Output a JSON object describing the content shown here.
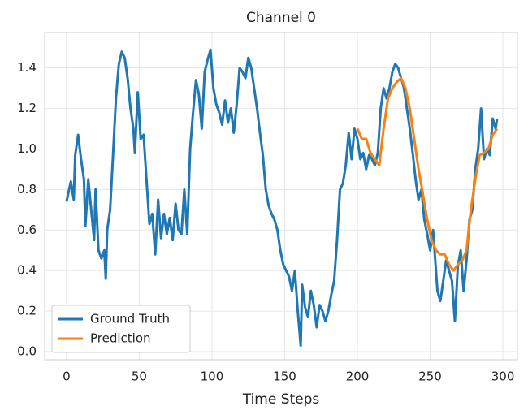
{
  "chart_data": {
    "type": "line",
    "title": "Channel 0",
    "x_label": "Time Steps",
    "xlim": [
      -15,
      310
    ],
    "xticks": [
      0,
      50,
      100,
      150,
      200,
      250,
      300
    ],
    "ylim": [
      -0.04,
      1.575
    ],
    "yticks": [
      {
        "value": 0,
        "label": "0.0"
      },
      {
        "value": 0.2,
        "label": "0.2"
      },
      {
        "value": 0.4,
        "label": "0.4"
      },
      {
        "value": 0.6,
        "label": "0.6"
      },
      {
        "value": 0.8,
        "label": "0.8"
      },
      {
        "value": 1,
        "label": "1.0"
      },
      {
        "value": 1.2,
        "label": "1.2"
      },
      {
        "value": 1.4,
        "label": "1.4"
      }
    ],
    "grid": true,
    "legend": "lower left",
    "series": [
      {
        "name": "Ground Truth",
        "color": "#1f77b4",
        "x": [
          0,
          3,
          5,
          6,
          8,
          10,
          12,
          13,
          15,
          17,
          19,
          20,
          22,
          24,
          26,
          27,
          28,
          30,
          32,
          34,
          36,
          38,
          40,
          42,
          44,
          46,
          47,
          49,
          51,
          53,
          55,
          57,
          59,
          61,
          63,
          65,
          67,
          69,
          71,
          73,
          75,
          77,
          79,
          81,
          83,
          85,
          87,
          89,
          91,
          93,
          95,
          97,
          99,
          101,
          103,
          105,
          107,
          109,
          111,
          113,
          115,
          117,
          119,
          121,
          123,
          125,
          127,
          129,
          131,
          133,
          135,
          137,
          139,
          141,
          143,
          145,
          147,
          149,
          151,
          153,
          155,
          157,
          159,
          161,
          162,
          164,
          166,
          168,
          170,
          172,
          174,
          176,
          178,
          180,
          182,
          184,
          186,
          188,
          190,
          192,
          194,
          196,
          198,
          200,
          202,
          204,
          206,
          208,
          210,
          212,
          214,
          216,
          218,
          220,
          222,
          224,
          226,
          228,
          230,
          232,
          234,
          236,
          238,
          240,
          242,
          244,
          246,
          248,
          250,
          252,
          254,
          255,
          257,
          259,
          261,
          263,
          265,
          267,
          269,
          271,
          273,
          275,
          277,
          279,
          281,
          283,
          285,
          287,
          289,
          291,
          293,
          295,
          296
        ],
        "values": [
          0.74,
          0.84,
          0.75,
          0.97,
          1.07,
          0.95,
          0.85,
          0.62,
          0.85,
          0.7,
          0.55,
          0.8,
          0.5,
          0.46,
          0.5,
          0.36,
          0.6,
          0.7,
          0.97,
          1.25,
          1.42,
          1.48,
          1.45,
          1.35,
          1.2,
          1.1,
          0.98,
          1.28,
          1.05,
          1.07,
          0.85,
          0.63,
          0.68,
          0.48,
          0.75,
          0.56,
          0.68,
          0.58,
          0.66,
          0.55,
          0.73,
          0.6,
          0.58,
          0.8,
          0.58,
          1.0,
          1.18,
          1.34,
          1.27,
          1.1,
          1.38,
          1.44,
          1.49,
          1.3,
          1.22,
          1.18,
          1.12,
          1.24,
          1.13,
          1.2,
          1.08,
          1.22,
          1.4,
          1.38,
          1.35,
          1.45,
          1.4,
          1.3,
          1.2,
          1.08,
          0.97,
          0.8,
          0.72,
          0.68,
          0.65,
          0.6,
          0.5,
          0.43,
          0.4,
          0.37,
          0.3,
          0.4,
          0.2,
          0.03,
          0.33,
          0.22,
          0.17,
          0.3,
          0.23,
          0.12,
          0.23,
          0.2,
          0.15,
          0.2,
          0.28,
          0.35,
          0.55,
          0.8,
          0.83,
          0.92,
          1.08,
          0.95,
          1.1,
          1.05,
          0.95,
          0.98,
          0.9,
          0.97,
          0.95,
          0.92,
          0.98,
          1.2,
          1.3,
          1.25,
          1.3,
          1.38,
          1.42,
          1.4,
          1.35,
          1.3,
          1.2,
          1.1,
          0.98,
          0.85,
          0.75,
          0.8,
          0.65,
          0.58,
          0.5,
          0.6,
          0.4,
          0.3,
          0.25,
          0.35,
          0.45,
          0.4,
          0.35,
          0.15,
          0.42,
          0.5,
          0.3,
          0.45,
          0.65,
          0.7,
          0.9,
          1.0,
          1.2,
          0.95,
          1.0,
          0.97,
          1.15,
          1.1,
          1.15
        ]
      },
      {
        "name": "Prediction",
        "color": "#ff7f0e",
        "x": [
          200,
          203,
          206,
          209,
          212,
          215,
          218,
          221,
          224,
          227,
          230,
          233,
          236,
          239,
          242,
          245,
          248,
          251,
          254,
          257,
          260,
          263,
          266,
          269,
          272,
          275,
          278,
          281,
          284,
          287,
          290,
          293,
          296
        ],
        "values": [
          1.1,
          1.05,
          1.05,
          0.98,
          0.95,
          0.92,
          1.1,
          1.25,
          1.3,
          1.33,
          1.35,
          1.3,
          1.2,
          1.05,
          0.9,
          0.78,
          0.65,
          0.55,
          0.5,
          0.48,
          0.48,
          0.43,
          0.4,
          0.43,
          0.45,
          0.5,
          0.7,
          0.85,
          0.97,
          0.98,
          1.0,
          1.07,
          1.1
        ]
      }
    ]
  }
}
